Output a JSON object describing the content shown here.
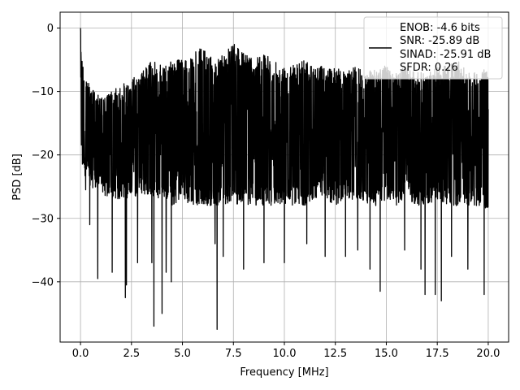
{
  "chart_data": {
    "type": "line",
    "title": "",
    "xlabel": "Frequency [MHz]",
    "ylabel": "PSD [dB]",
    "xlim": [
      -1.0,
      21.0
    ],
    "ylim": [
      -49.5,
      2.5
    ],
    "xticks": [
      0.0,
      2.5,
      5.0,
      7.5,
      10.0,
      12.5,
      15.0,
      17.5,
      20.0
    ],
    "xtick_labels": [
      "0.0",
      "2.5",
      "5.0",
      "7.5",
      "10.0",
      "12.5",
      "15.0",
      "17.5",
      "20.0"
    ],
    "yticks": [
      0,
      -10,
      -20,
      -30,
      -40
    ],
    "ytick_labels": [
      "0",
      "−10",
      "−20",
      "−30",
      "−40"
    ],
    "grid": true,
    "legend_position": "top-right",
    "series": [
      {
        "color": "#000000",
        "x_range": [
          0.0,
          20.0
        ],
        "upper_envelope": [
          [
            0.0,
            0
          ],
          [
            0.1,
            -5
          ],
          [
            0.5,
            -9
          ],
          [
            1.0,
            -11
          ],
          [
            1.5,
            -10
          ],
          [
            2.0,
            -9
          ],
          [
            2.5,
            -8
          ],
          [
            3.0,
            -7
          ],
          [
            3.5,
            -5
          ],
          [
            4.0,
            -6
          ],
          [
            4.5,
            -5
          ],
          [
            5.0,
            -5
          ],
          [
            5.5,
            -4
          ],
          [
            6.0,
            -3
          ],
          [
            6.5,
            -5
          ],
          [
            7.0,
            -4
          ],
          [
            7.5,
            -2
          ],
          [
            8.0,
            -4
          ],
          [
            8.5,
            -5
          ],
          [
            9.0,
            -4
          ],
          [
            9.5,
            -5
          ],
          [
            10.0,
            -6
          ],
          [
            10.5,
            -5
          ],
          [
            11.0,
            -5
          ],
          [
            11.5,
            -6
          ],
          [
            12.0,
            -6
          ],
          [
            12.5,
            -6
          ],
          [
            13.0,
            -7
          ],
          [
            13.5,
            -6
          ],
          [
            14.0,
            -7
          ],
          [
            14.5,
            -6
          ],
          [
            15.0,
            -6
          ],
          [
            15.5,
            -7
          ],
          [
            16.0,
            -6
          ],
          [
            16.5,
            -7
          ],
          [
            17.0,
            -7
          ],
          [
            17.5,
            -6
          ],
          [
            18.0,
            -6
          ],
          [
            18.5,
            -5
          ],
          [
            19.0,
            -7
          ],
          [
            19.5,
            -7
          ],
          [
            20.0,
            -6
          ]
        ],
        "lower_envelope": [
          [
            0.0,
            -22
          ],
          [
            0.5,
            -25
          ],
          [
            1.0,
            -26
          ],
          [
            1.5,
            -27
          ],
          [
            2.0,
            -27
          ],
          [
            2.5,
            -27
          ],
          [
            3.0,
            -26
          ],
          [
            3.5,
            -27
          ],
          [
            4.0,
            -27
          ],
          [
            4.5,
            -28
          ],
          [
            5.0,
            -27
          ],
          [
            5.5,
            -28
          ],
          [
            6.0,
            -28
          ],
          [
            6.5,
            -28
          ],
          [
            7.0,
            -28
          ],
          [
            7.5,
            -28
          ],
          [
            8.0,
            -28
          ],
          [
            8.5,
            -28
          ],
          [
            9.0,
            -28
          ],
          [
            9.5,
            -28
          ],
          [
            10.0,
            -28
          ],
          [
            10.5,
            -28
          ],
          [
            11.0,
            -28
          ],
          [
            11.5,
            -27
          ],
          [
            12.0,
            -27
          ],
          [
            12.5,
            -28
          ],
          [
            13.0,
            -27
          ],
          [
            13.5,
            -27
          ],
          [
            14.0,
            -28
          ],
          [
            14.5,
            -28
          ],
          [
            15.0,
            -27
          ],
          [
            15.5,
            -28
          ],
          [
            16.0,
            -27
          ],
          [
            16.5,
            -28
          ],
          [
            17.0,
            -28
          ],
          [
            17.5,
            -27
          ],
          [
            18.0,
            -28
          ],
          [
            18.5,
            -28
          ],
          [
            19.0,
            -28
          ],
          [
            19.5,
            -28
          ],
          [
            20.0,
            -29
          ]
        ],
        "notable_dips": [
          [
            0.25,
            -25.5
          ],
          [
            0.45,
            -31
          ],
          [
            0.85,
            -39.5
          ],
          [
            1.55,
            -38.5
          ],
          [
            2.2,
            -42.5
          ],
          [
            2.25,
            -40.5
          ],
          [
            2.8,
            -37
          ],
          [
            3.5,
            -37
          ],
          [
            3.6,
            -47
          ],
          [
            4.0,
            -45
          ],
          [
            4.2,
            -38.5
          ],
          [
            4.45,
            -40
          ],
          [
            6.7,
            -47.5
          ],
          [
            6.6,
            -34
          ],
          [
            7.0,
            -36
          ],
          [
            8.0,
            -38
          ],
          [
            9.0,
            -37
          ],
          [
            10.0,
            -37
          ],
          [
            11.1,
            -34
          ],
          [
            12.0,
            -36
          ],
          [
            13.0,
            -36
          ],
          [
            13.6,
            -35
          ],
          [
            14.2,
            -38
          ],
          [
            14.7,
            -41.5
          ],
          [
            15.9,
            -35
          ],
          [
            16.7,
            -38
          ],
          [
            16.9,
            -42
          ],
          [
            17.4,
            -42
          ],
          [
            17.7,
            -43
          ],
          [
            18.2,
            -36
          ],
          [
            19.0,
            -38
          ],
          [
            19.8,
            -42
          ]
        ]
      }
    ],
    "legend": {
      "lines": [
        "ENOB: -4.6 bits",
        "SNR: -25.89 dB",
        "SINAD: -25.91 dB",
        "SFDR: 0.26"
      ]
    }
  }
}
